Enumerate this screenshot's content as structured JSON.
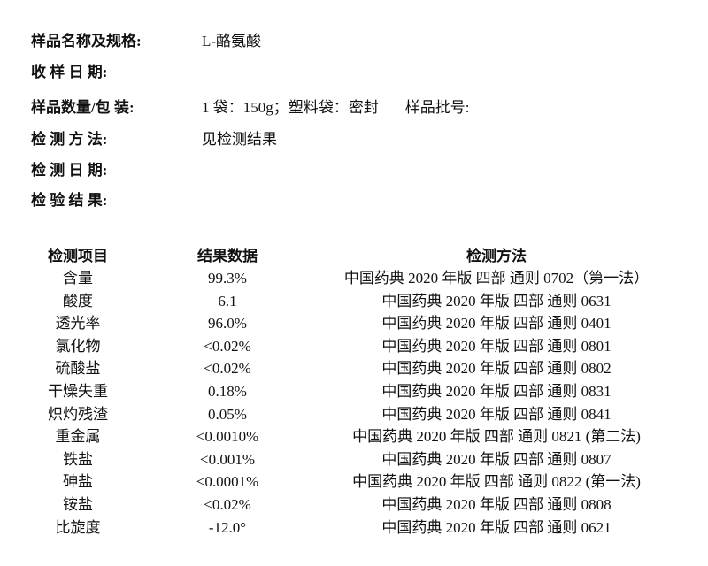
{
  "info": [
    {
      "label": "样品名称及规格:",
      "value": "L-酪氨酸"
    },
    {
      "label": "收 样 日 期:",
      "value": ""
    },
    {
      "label": "样品数量/包 装:",
      "value": "1 袋：150g；塑料袋：密封",
      "extra": "样品批号:"
    },
    {
      "label": "检 测 方 法:",
      "value": "见检测结果"
    },
    {
      "label": "检 测 日 期:",
      "value": ""
    },
    {
      "label": "检 验 结 果:",
      "value": ""
    }
  ],
  "table": {
    "headers": [
      "检测项目",
      "结果数据",
      "检测方法"
    ],
    "rows": [
      [
        "含量",
        "99.3%",
        "中国药典  2020 年版  四部  通则 0702（第一法）"
      ],
      [
        "酸度",
        "6.1",
        "中国药典  2020 年版  四部  通则 0631"
      ],
      [
        "透光率",
        "96.0%",
        "中国药典  2020 年版  四部  通则 0401"
      ],
      [
        "氯化物",
        "<0.02%",
        "中国药典  2020 年版  四部  通则 0801"
      ],
      [
        "硫酸盐",
        "<0.02%",
        "中国药典  2020 年版  四部  通则 0802"
      ],
      [
        "干燥失重",
        "0.18%",
        "中国药典  2020 年版  四部  通则 0831"
      ],
      [
        "炽灼残渣",
        "0.05%",
        "中国药典  2020 年版  四部  通则 0841"
      ],
      [
        "重金属",
        "<0.0010%",
        "中国药典  2020 年版  四部  通则 0821 (第二法)"
      ],
      [
        "铁盐",
        "<0.001%",
        "中国药典  2020 年版  四部  通则 0807"
      ],
      [
        "砷盐",
        "<0.0001%",
        "中国药典  2020 年版  四部  通则 0822 (第一法)"
      ],
      [
        "铵盐",
        "<0.02%",
        "中国药典  2020 年版  四部  通则 0808"
      ],
      [
        "比旋度",
        "-12.0°",
        "中国药典  2020 年版  四部  通则 0621"
      ]
    ]
  }
}
